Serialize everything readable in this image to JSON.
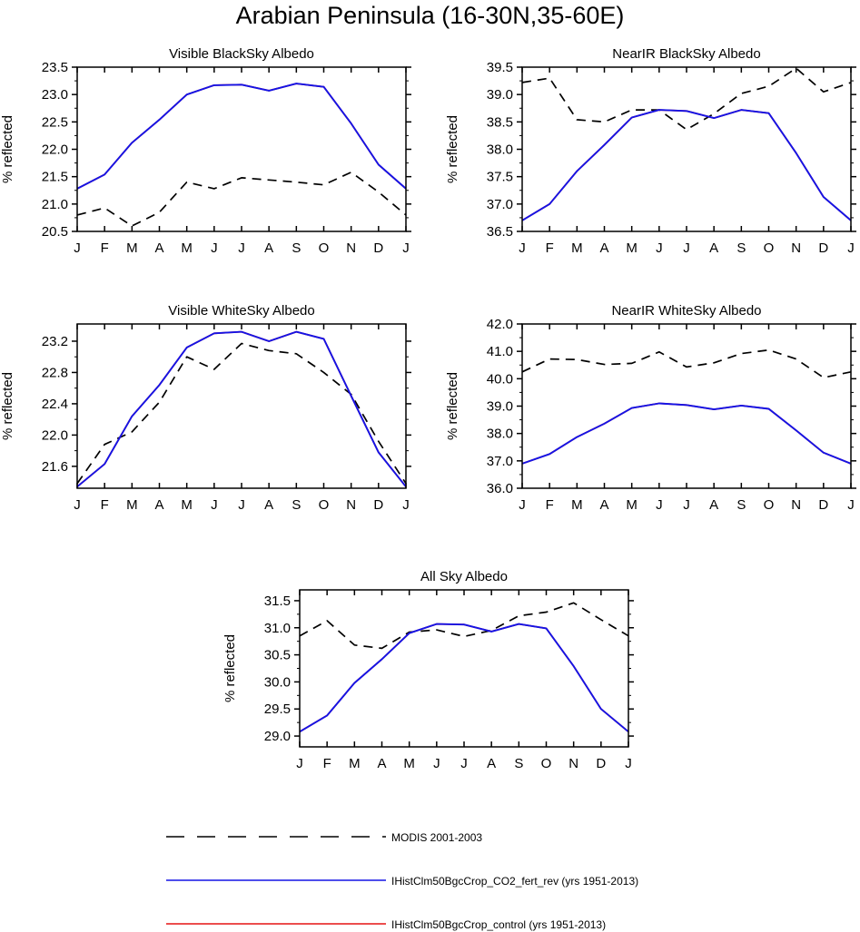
{
  "figure_title": "Arabian Peninsula (16-30N,35-60E)",
  "colors": {
    "modis": "#000000",
    "co2_fert": "#1414e6",
    "control": "#e61414"
  },
  "legend": [
    {
      "label": "MODIS 2001-2003",
      "style": "dashed",
      "color": "#000000"
    },
    {
      "label": "IHistClm50BgcCrop_CO2_fert_rev (yrs 1951-2013)",
      "style": "solid",
      "color": "#1414e6"
    },
    {
      "label": "IHistClm50BgcCrop_control (yrs 1951-2013)",
      "style": "solid",
      "color": "#e61414"
    }
  ],
  "chart_data": [
    {
      "type": "line",
      "title": "Visible BlackSky Albedo",
      "ylabel": "% reflected",
      "categories": [
        "J",
        "F",
        "M",
        "A",
        "M",
        "J",
        "J",
        "A",
        "S",
        "O",
        "N",
        "D",
        "J"
      ],
      "ylim": [
        20.5,
        23.5
      ],
      "yticks": [
        "20.5",
        "21.0",
        "21.5",
        "22.0",
        "22.5",
        "23.0",
        "23.5"
      ],
      "series": [
        {
          "name": "MODIS 2001-2003",
          "values": [
            20.8,
            20.93,
            20.6,
            20.85,
            21.4,
            21.28,
            21.48,
            21.44,
            21.4,
            21.35,
            21.58,
            21.22,
            20.8
          ]
        },
        {
          "name": "IHistClm50BgcCrop_control (yrs 1951-2013)",
          "values": [
            21.28,
            21.54,
            22.12,
            22.54,
            23.0,
            23.17,
            23.18,
            23.07,
            23.2,
            23.14,
            22.47,
            21.72,
            21.28
          ]
        },
        {
          "name": "IHistClm50BgcCrop_CO2_fert_rev (yrs 1951-2013)",
          "values": [
            21.28,
            21.54,
            22.12,
            22.54,
            23.0,
            23.17,
            23.18,
            23.07,
            23.2,
            23.14,
            22.47,
            21.72,
            21.28
          ]
        }
      ]
    },
    {
      "type": "line",
      "title": "NearIR BlackSky Albedo",
      "ylabel": "% reflected",
      "categories": [
        "J",
        "F",
        "M",
        "A",
        "M",
        "J",
        "J",
        "A",
        "S",
        "O",
        "N",
        "D",
        "J"
      ],
      "ylim": [
        36.5,
        39.5
      ],
      "yticks": [
        "36.5",
        "37.0",
        "37.5",
        "38.0",
        "38.5",
        "39.0",
        "39.5"
      ],
      "series": [
        {
          "name": "MODIS 2001-2003",
          "values": [
            39.22,
            39.3,
            38.54,
            38.5,
            38.72,
            38.72,
            38.36,
            38.65,
            39.02,
            39.15,
            39.48,
            39.05,
            39.22
          ]
        },
        {
          "name": "IHistClm50BgcCrop_control (yrs 1951-2013)",
          "values": [
            36.7,
            37.0,
            37.6,
            38.08,
            38.58,
            38.72,
            38.7,
            38.57,
            38.72,
            38.66,
            37.93,
            37.13,
            36.7
          ]
        },
        {
          "name": "IHistClm50BgcCrop_CO2_fert_rev (yrs 1951-2013)",
          "values": [
            36.7,
            37.0,
            37.6,
            38.08,
            38.58,
            38.72,
            38.7,
            38.57,
            38.72,
            38.66,
            37.93,
            37.13,
            36.7
          ]
        }
      ]
    },
    {
      "type": "line",
      "title": "Visible WhiteSky Albedo",
      "ylabel": "% reflected",
      "categories": [
        "J",
        "F",
        "M",
        "A",
        "M",
        "J",
        "J",
        "A",
        "S",
        "O",
        "N",
        "D",
        "J"
      ],
      "ylim": [
        21.32,
        23.42
      ],
      "yticks": [
        "21.6",
        "22.0",
        "22.4",
        "22.8",
        "23.2"
      ],
      "series": [
        {
          "name": "MODIS 2001-2003",
          "values": [
            21.38,
            21.88,
            22.04,
            22.42,
            23.0,
            22.84,
            23.17,
            23.08,
            23.04,
            22.8,
            22.52,
            21.92,
            21.38
          ]
        },
        {
          "name": "IHistClm50BgcCrop_control (yrs 1951-2013)",
          "values": [
            21.34,
            21.63,
            22.24,
            22.64,
            23.12,
            23.3,
            23.32,
            23.2,
            23.32,
            23.23,
            22.5,
            21.78,
            21.34
          ]
        },
        {
          "name": "IHistClm50BgcCrop_CO2_fert_rev (yrs 1951-2013)",
          "values": [
            21.34,
            21.63,
            22.24,
            22.64,
            23.12,
            23.3,
            23.32,
            23.2,
            23.32,
            23.23,
            22.5,
            21.78,
            21.34
          ]
        }
      ]
    },
    {
      "type": "line",
      "title": "NearIR WhiteSky Albedo",
      "ylabel": "% reflected",
      "categories": [
        "J",
        "F",
        "M",
        "A",
        "M",
        "J",
        "J",
        "A",
        "S",
        "O",
        "N",
        "D",
        "J"
      ],
      "ylim": [
        36.0,
        42.0
      ],
      "yticks": [
        "36.0",
        "37.0",
        "38.0",
        "39.0",
        "40.0",
        "41.0",
        "42.0"
      ],
      "series": [
        {
          "name": "MODIS 2001-2003",
          "values": [
            40.25,
            40.72,
            40.7,
            40.52,
            40.56,
            40.98,
            40.43,
            40.58,
            40.92,
            41.05,
            40.72,
            40.04,
            40.25
          ]
        },
        {
          "name": "IHistClm50BgcCrop_control (yrs 1951-2013)",
          "values": [
            36.9,
            37.25,
            37.87,
            38.36,
            38.93,
            39.1,
            39.04,
            38.88,
            39.02,
            38.9,
            38.11,
            37.3,
            36.9
          ]
        },
        {
          "name": "IHistClm50BgcCrop_CO2_fert_rev (yrs 1951-2013)",
          "values": [
            36.9,
            37.25,
            37.87,
            38.36,
            38.93,
            39.1,
            39.04,
            38.88,
            39.02,
            38.9,
            38.11,
            37.3,
            36.9
          ]
        }
      ]
    },
    {
      "type": "line",
      "title": "All Sky Albedo",
      "ylabel": "% reflected",
      "categories": [
        "J",
        "F",
        "M",
        "A",
        "M",
        "J",
        "J",
        "A",
        "S",
        "O",
        "N",
        "D",
        "J"
      ],
      "ylim": [
        28.8,
        31.7
      ],
      "yticks": [
        "29.0",
        "29.5",
        "30.0",
        "30.5",
        "31.0",
        "31.5"
      ],
      "series": [
        {
          "name": "MODIS 2001-2003",
          "values": [
            30.85,
            31.13,
            30.68,
            30.62,
            30.92,
            30.96,
            30.84,
            30.95,
            31.22,
            31.29,
            31.46,
            31.15,
            30.85
          ]
        },
        {
          "name": "IHistClm50BgcCrop_control (yrs 1951-2013)",
          "values": [
            29.08,
            29.38,
            29.98,
            30.42,
            30.9,
            31.07,
            31.06,
            30.93,
            31.07,
            30.99,
            30.29,
            29.5,
            29.08
          ]
        },
        {
          "name": "IHistClm50BgcCrop_CO2_fert_rev (yrs 1951-2013)",
          "values": [
            29.08,
            29.38,
            29.98,
            30.42,
            30.9,
            31.07,
            31.06,
            30.93,
            31.07,
            30.99,
            30.29,
            29.5,
            29.08
          ]
        }
      ]
    }
  ]
}
